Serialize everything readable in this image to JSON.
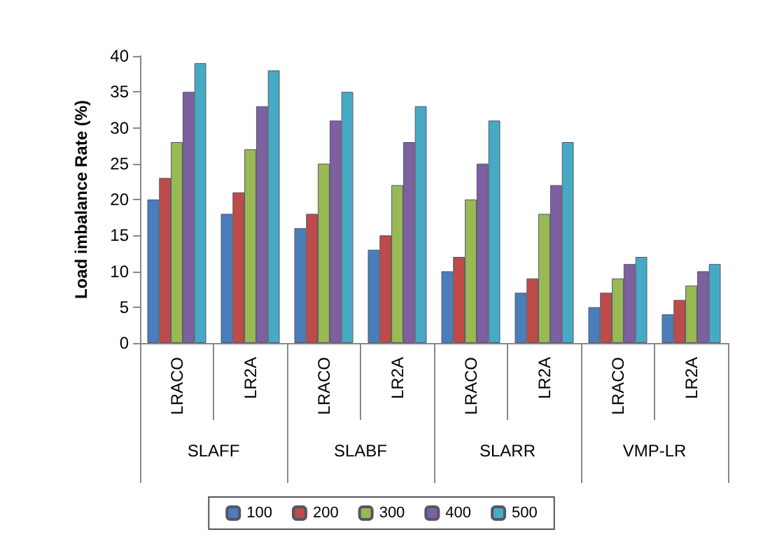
{
  "chart_data": {
    "type": "bar",
    "ylabel": "Load imbalance Rate (%)",
    "categories": [
      "LRACO",
      "LR2A",
      "LRACO",
      "LR2A",
      "LRACO",
      "LR2A",
      "LRACO",
      "LR2A"
    ],
    "annotations": [
      "SLAFF",
      "SLABF",
      "SLARR",
      "VMP-LR"
    ],
    "series": [
      {
        "name": "100",
        "color": "#4a7ebb",
        "values": [
          20,
          18,
          16,
          13,
          10,
          7,
          5,
          4
        ]
      },
      {
        "name": "200",
        "color": "#be4b48",
        "values": [
          23,
          21,
          18,
          15,
          12,
          9,
          7,
          6
        ]
      },
      {
        "name": "300",
        "color": "#98b954",
        "values": [
          28,
          27,
          25,
          22,
          20,
          18,
          9,
          8
        ]
      },
      {
        "name": "400",
        "color": "#7d60a0",
        "values": [
          35,
          33,
          31,
          28,
          25,
          22,
          11,
          10
        ]
      },
      {
        "name": "500",
        "color": "#46aac5",
        "values": [
          39,
          38,
          35,
          33,
          31,
          28,
          12,
          11
        ]
      }
    ],
    "ylim": [
      0,
      40
    ],
    "yticks": [
      0,
      5,
      10,
      15,
      20,
      25,
      30,
      35,
      40
    ],
    "grid": false,
    "legend": "bottom"
  }
}
